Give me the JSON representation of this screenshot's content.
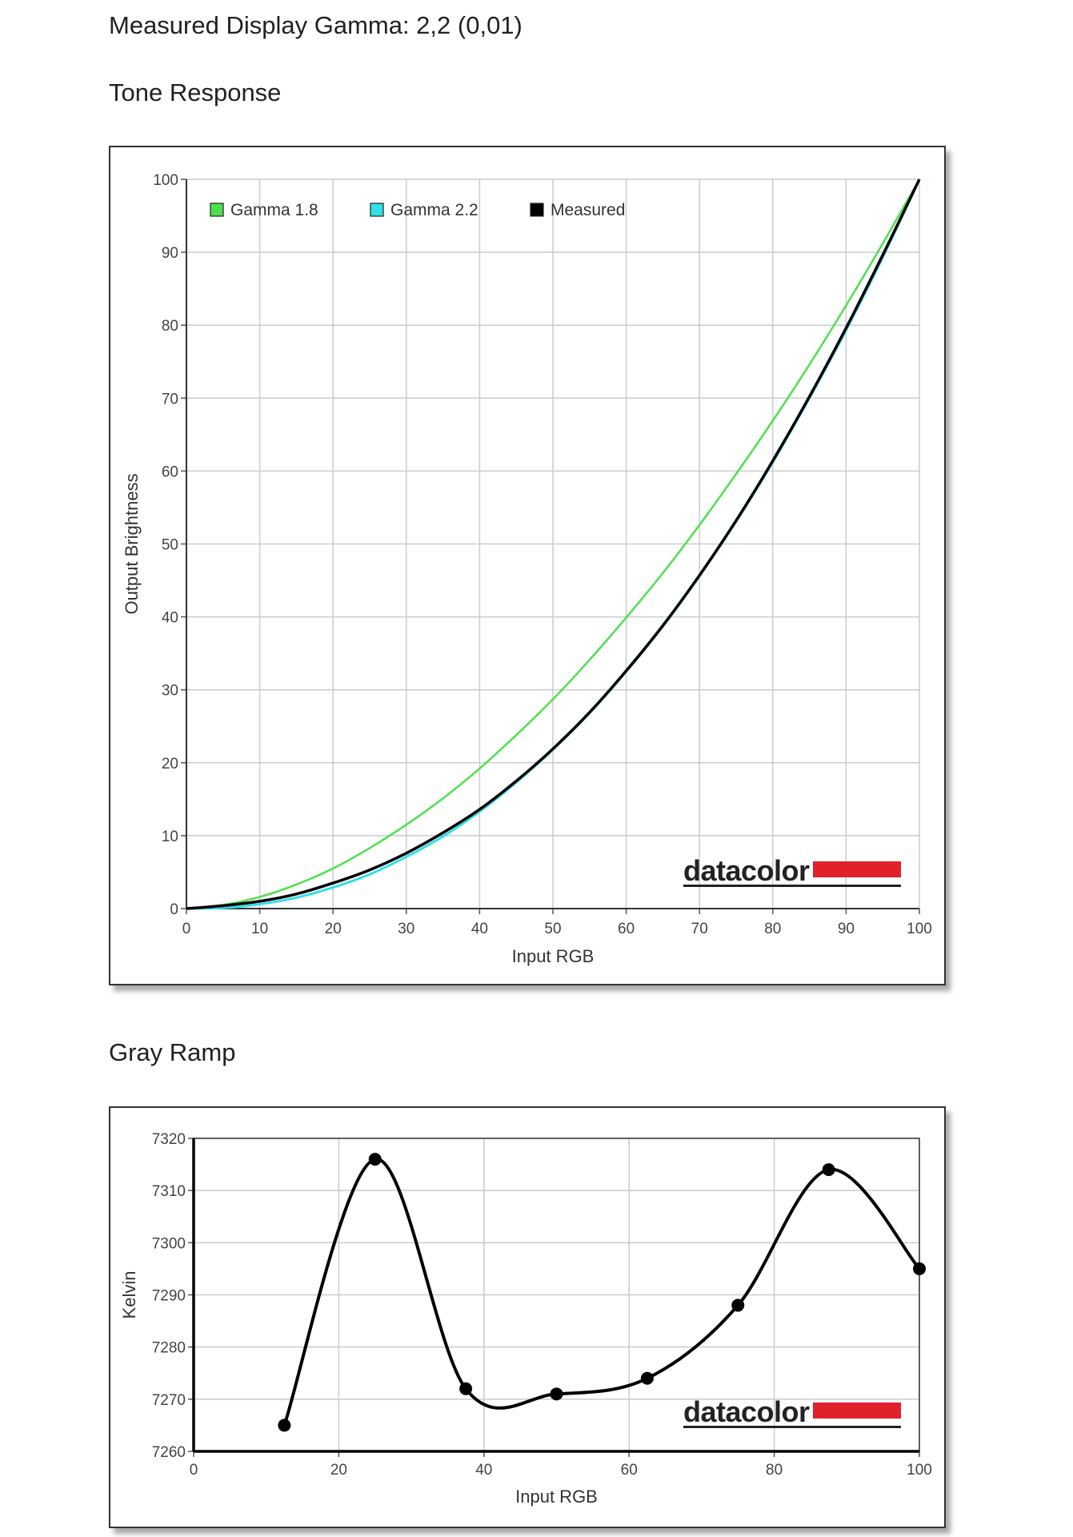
{
  "headings": {
    "gamma": "Measured Display Gamma: 2,2 (0,01)",
    "tone": "Tone Response",
    "gray": "Gray Ramp"
  },
  "logo_text": "datacolor",
  "colors": {
    "gamma18": "#4ee04e",
    "gamma22": "#30e0e8",
    "measured": "#000000",
    "grid": "#cccccc",
    "logo_red": "#e0202a"
  },
  "chart_data": [
    {
      "type": "line",
      "name": "tone-response",
      "xlabel": "Input RGB",
      "ylabel": "Output Brightness",
      "xlim": [
        0,
        100
      ],
      "ylim": [
        0,
        100
      ],
      "xticks": [
        "0",
        "10",
        "20",
        "30",
        "40",
        "50",
        "60",
        "70",
        "80",
        "90",
        "100"
      ],
      "yticks": [
        "0",
        "10",
        "20",
        "30",
        "40",
        "50",
        "60",
        "70",
        "80",
        "90",
        "100"
      ],
      "grid": true,
      "legend_position": "top-left",
      "series": [
        {
          "name": "Gamma 1.8",
          "x": [
            0,
            5,
            10,
            15,
            20,
            25,
            30,
            35,
            40,
            45,
            50,
            55,
            60,
            65,
            70,
            75,
            80,
            85,
            90,
            95,
            100
          ],
          "y": [
            0,
            0.5,
            1.6,
            3.3,
            5.5,
            8.3,
            11.5,
            15.1,
            19.2,
            23.8,
            28.7,
            34.1,
            39.9,
            46.0,
            52.6,
            59.6,
            66.9,
            74.6,
            82.7,
            91.2,
            100
          ]
        },
        {
          "name": "Gamma 2.2",
          "x": [
            0,
            5,
            10,
            15,
            20,
            25,
            30,
            35,
            40,
            45,
            50,
            55,
            60,
            65,
            70,
            75,
            80,
            85,
            90,
            95,
            100
          ],
          "y": [
            0,
            0.1,
            0.6,
            1.5,
            2.9,
            4.7,
            7.1,
            9.9,
            13.3,
            17.3,
            21.8,
            26.8,
            32.5,
            38.7,
            45.6,
            53.1,
            61.2,
            70.0,
            79.3,
            89.3,
            100
          ]
        },
        {
          "name": "Measured",
          "x": [
            0,
            5,
            10,
            15,
            20,
            25,
            30,
            35,
            40,
            45,
            50,
            55,
            60,
            65,
            70,
            75,
            80,
            85,
            90,
            95,
            100
          ],
          "y": [
            0,
            0.4,
            1.0,
            2.0,
            3.5,
            5.3,
            7.6,
            10.4,
            13.6,
            17.5,
            21.9,
            26.9,
            32.6,
            38.8,
            45.7,
            53.2,
            61.4,
            70.2,
            79.6,
            89.6,
            100
          ]
        }
      ]
    },
    {
      "type": "line",
      "name": "gray-ramp",
      "xlabel": "Input RGB",
      "ylabel": "Kelvin",
      "xlim": [
        0,
        100
      ],
      "ylim": [
        7260,
        7320
      ],
      "xticks": [
        "0",
        "20",
        "40",
        "60",
        "80",
        "100"
      ],
      "yticks": [
        "7260",
        "7270",
        "7280",
        "7290",
        "7300",
        "7310",
        "7320"
      ],
      "grid": true,
      "series": [
        {
          "name": "Kelvin",
          "x": [
            12.5,
            25,
            37.5,
            50,
            62.5,
            75,
            87.5,
            100
          ],
          "y": [
            7265,
            7316,
            7272,
            7271,
            7274,
            7288,
            7314,
            7295
          ]
        }
      ]
    }
  ]
}
